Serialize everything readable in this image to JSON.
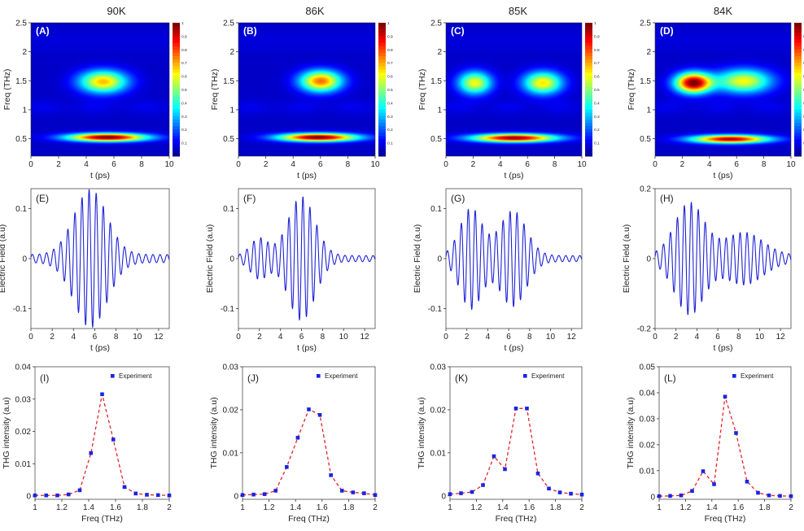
{
  "figure": {
    "temperatures": [
      "90K",
      "86K",
      "85K",
      "84K"
    ]
  },
  "chart_data": [
    {
      "type": "heatmap",
      "panel": "(A)",
      "title": "90K",
      "xlabel": "t (ps)",
      "ylabel": "Freq (THz)",
      "xlim": [
        0,
        10
      ],
      "ylim": [
        0.2,
        2.5
      ],
      "xticks": [
        0,
        2,
        4,
        6,
        8,
        10
      ],
      "yticks": [
        0.5,
        1,
        1.5,
        2,
        2.5
      ],
      "colorbar": {
        "range": [
          0,
          1
        ],
        "ticks": [
          "0.1",
          "0.2",
          "0.3",
          "0.4",
          "0.5",
          "0.6",
          "0.7",
          "0.8",
          "0.9",
          "1"
        ]
      },
      "blobs": [
        {
          "t": 5.5,
          "f": 0.53,
          "st": 2.8,
          "sf": 0.07,
          "amp": 0.95
        },
        {
          "t": 5.2,
          "f": 1.49,
          "st": 1.7,
          "sf": 0.19,
          "amp": 0.62
        }
      ]
    },
    {
      "type": "heatmap",
      "panel": "(B)",
      "title": "86K",
      "xlabel": "t (ps)",
      "ylabel": "Freq (THz)",
      "xlim": [
        0,
        10
      ],
      "ylim": [
        0.2,
        2.5
      ],
      "xticks": [
        0,
        2,
        4,
        6,
        8,
        10
      ],
      "yticks": [
        0.5,
        1,
        1.5,
        2,
        2.5
      ],
      "colorbar": {
        "range": [
          0,
          1
        ],
        "ticks": [
          "0.1",
          "0.2",
          "0.3",
          "0.4",
          "0.5",
          "0.6",
          "0.7",
          "0.8",
          "0.9",
          "1"
        ]
      },
      "blobs": [
        {
          "t": 5.8,
          "f": 0.53,
          "st": 2.8,
          "sf": 0.07,
          "amp": 0.95
        },
        {
          "t": 6.0,
          "f": 1.5,
          "st": 1.5,
          "sf": 0.18,
          "amp": 0.7
        }
      ]
    },
    {
      "type": "heatmap",
      "panel": "(C)",
      "title": "85K",
      "xlabel": "t (ps)",
      "ylabel": "Freq (THz)",
      "xlim": [
        0,
        10
      ],
      "ylim": [
        0.2,
        2.5
      ],
      "xticks": [
        0,
        2,
        4,
        6,
        8,
        10
      ],
      "yticks": [
        0.5,
        1,
        1.5,
        2,
        2.5
      ],
      "colorbar": {
        "range": [
          0,
          1
        ],
        "ticks": [
          "0.1",
          "0.2",
          "0.3",
          "0.4",
          "0.5",
          "0.6",
          "0.7",
          "0.8",
          "0.9",
          "1"
        ]
      },
      "blobs": [
        {
          "t": 5.0,
          "f": 0.52,
          "st": 3.0,
          "sf": 0.07,
          "amp": 0.92
        },
        {
          "t": 2.1,
          "f": 1.47,
          "st": 1.2,
          "sf": 0.19,
          "amp": 0.55
        },
        {
          "t": 7.1,
          "f": 1.47,
          "st": 1.4,
          "sf": 0.19,
          "amp": 0.58
        }
      ]
    },
    {
      "type": "heatmap",
      "panel": "(D)",
      "title": "84K",
      "xlabel": "t (ps)",
      "ylabel": "Freq (THz)",
      "xlim": [
        0,
        10
      ],
      "ylim": [
        0.2,
        2.5
      ],
      "xticks": [
        0,
        2,
        4,
        6,
        8,
        10
      ],
      "yticks": [
        0.5,
        1,
        1.5,
        2,
        2.5
      ],
      "colorbar": {
        "range": [
          0,
          1
        ],
        "ticks": [
          "0.1",
          "0.2",
          "0.3",
          "0.4",
          "0.5",
          "0.6",
          "0.7",
          "0.8",
          "0.9",
          "1"
        ]
      },
      "blobs": [
        {
          "t": 5.5,
          "f": 0.5,
          "st": 2.8,
          "sf": 0.07,
          "amp": 0.88
        },
        {
          "t": 2.8,
          "f": 1.47,
          "st": 1.3,
          "sf": 0.17,
          "amp": 0.95
        },
        {
          "t": 6.5,
          "f": 1.5,
          "st": 2.0,
          "sf": 0.2,
          "amp": 0.55
        }
      ]
    },
    {
      "type": "line",
      "panel": "(E)",
      "xlabel": "t (ps)",
      "ylabel": "Electric Field (a.u)",
      "xlim": [
        0,
        13
      ],
      "ylim": [
        -0.14,
        0.14
      ],
      "xticks": [
        0,
        2,
        4,
        6,
        8,
        10,
        12
      ],
      "yticks": [
        -0.1,
        0,
        0.1
      ],
      "ytick_labels": [
        "-0.1",
        "0",
        "0.1"
      ],
      "waveform": {
        "freq_thz": 1.5,
        "envelope": [
          {
            "center": 5.6,
            "sigma": 2.2,
            "amp": 0.13
          }
        ],
        "baseline_amp": 0.008
      }
    },
    {
      "type": "line",
      "panel": "(F)",
      "xlabel": "t (ps)",
      "ylabel": "Electric Field (a.u)",
      "xlim": [
        0,
        13
      ],
      "ylim": [
        -0.14,
        0.14
      ],
      "xticks": [
        0,
        2,
        4,
        6,
        8,
        10,
        12
      ],
      "yticks": [
        -0.1,
        0,
        0.1
      ],
      "ytick_labels": [
        "-0.1",
        "0",
        "0.1"
      ],
      "waveform": {
        "freq_thz": 1.5,
        "envelope": [
          {
            "center": 6.0,
            "sigma": 1.8,
            "amp": 0.118
          },
          {
            "center": 2.0,
            "sigma": 1.2,
            "amp": 0.035
          }
        ],
        "baseline_amp": 0.006
      }
    },
    {
      "type": "line",
      "panel": "(G)",
      "xlabel": "t (ps)",
      "ylabel": "Electric Field (a.u)",
      "xlim": [
        0,
        13
      ],
      "ylim": [
        -0.14,
        0.14
      ],
      "xticks": [
        0,
        2,
        4,
        6,
        8,
        10,
        12
      ],
      "yticks": [
        -0.1,
        0,
        0.1
      ],
      "ytick_labels": [
        "-0.1",
        "0",
        "0.1"
      ],
      "waveform": {
        "freq_thz": 1.5,
        "envelope": [
          {
            "center": 2.4,
            "sigma": 1.5,
            "amp": 0.095
          },
          {
            "center": 6.4,
            "sigma": 1.8,
            "amp": 0.09
          }
        ],
        "baseline_amp": 0.006
      }
    },
    {
      "type": "line",
      "panel": "(H)",
      "xlabel": "t (ps)",
      "ylabel": "Electric Field (a.u)",
      "xlim": [
        0,
        13
      ],
      "ylim": [
        -0.2,
        0.2
      ],
      "xticks": [
        0,
        2,
        4,
        6,
        8,
        10,
        12
      ],
      "yticks": [
        -0.2,
        0,
        0.2
      ],
      "ytick_labels": [
        "-0.2",
        "0",
        "0.2"
      ],
      "waveform": {
        "freq_thz": 1.5,
        "envelope": [
          {
            "center": 3.3,
            "sigma": 2.0,
            "amp": 0.15
          },
          {
            "center": 8.5,
            "sigma": 2.6,
            "amp": 0.065
          }
        ],
        "baseline_amp": 0.01
      }
    },
    {
      "type": "scatter",
      "panel": "(I)",
      "xlabel": "Freq (THz)",
      "ylabel": "THG intensity (a.u)",
      "xlim": [
        1,
        2
      ],
      "ylim": [
        -0.001,
        0.04
      ],
      "xticks": [
        1,
        1.2,
        1.4,
        1.6,
        1.8,
        2
      ],
      "xtick_labels": [
        "1",
        "1.2",
        "1.4",
        "1.6",
        "1.8",
        "2"
      ],
      "yticks": [
        0,
        0.01,
        0.02,
        0.03,
        0.04
      ],
      "ytick_labels": [
        "0",
        "0.01",
        "0.02",
        "0.03",
        "0.04"
      ],
      "legend": "Experiment",
      "x": [
        1.0,
        1.0833,
        1.1667,
        1.25,
        1.3333,
        1.4167,
        1.5,
        1.5833,
        1.6667,
        1.75,
        1.8333,
        1.9167,
        2.0
      ],
      "y": [
        0.0002,
        0.0002,
        0.0002,
        0.0005,
        0.0018,
        0.0133,
        0.0315,
        0.0175,
        0.0028,
        0.0008,
        0.0004,
        0.0003,
        0.0002
      ]
    },
    {
      "type": "scatter",
      "panel": "(J)",
      "xlabel": "Freq (THz)",
      "ylabel": "THG intensity (a.u)",
      "xlim": [
        1,
        2
      ],
      "ylim": [
        -0.0008,
        0.03
      ],
      "xticks": [
        1,
        1.2,
        1.4,
        1.6,
        1.8,
        2
      ],
      "xtick_labels": [
        "1",
        "1.2",
        "1.4",
        "1.6",
        "1.8",
        "2"
      ],
      "yticks": [
        0,
        0.01,
        0.02,
        0.03
      ],
      "ytick_labels": [
        "0",
        "0.01",
        "0.02",
        "0.03"
      ],
      "legend": "Experiment",
      "x": [
        1.0,
        1.0833,
        1.1667,
        1.25,
        1.3333,
        1.4167,
        1.5,
        1.5833,
        1.6667,
        1.75,
        1.8333,
        1.9167,
        2.0
      ],
      "y": [
        0.0002,
        0.0003,
        0.0004,
        0.0012,
        0.0067,
        0.0135,
        0.0201,
        0.0188,
        0.0048,
        0.0012,
        0.0008,
        0.0006,
        0.0002
      ]
    },
    {
      "type": "scatter",
      "panel": "(K)",
      "xlabel": "Freq (THz)",
      "ylabel": "THG intensity (a.u)",
      "xlim": [
        1,
        2
      ],
      "ylim": [
        -0.0008,
        0.03
      ],
      "xticks": [
        1,
        1.2,
        1.4,
        1.6,
        1.8,
        2
      ],
      "xtick_labels": [
        "1",
        "1.2",
        "1.4",
        "1.6",
        "1.8",
        "2"
      ],
      "yticks": [
        0,
        0.01,
        0.02,
        0.03
      ],
      "ytick_labels": [
        "0",
        "0.01",
        "0.02",
        "0.03"
      ],
      "legend": "Experiment",
      "x": [
        1.0,
        1.0833,
        1.1667,
        1.25,
        1.3333,
        1.4167,
        1.5,
        1.5833,
        1.6667,
        1.75,
        1.8333,
        1.9167,
        2.0
      ],
      "y": [
        0.0004,
        0.0006,
        0.0009,
        0.0025,
        0.0092,
        0.0062,
        0.0203,
        0.0203,
        0.0052,
        0.0017,
        0.0008,
        0.0005,
        0.0003
      ]
    },
    {
      "type": "scatter",
      "panel": "(L)",
      "xlabel": "Freq (THz)",
      "ylabel": "THG intensity (a.u)",
      "xlim": [
        1,
        2
      ],
      "ylim": [
        -0.001,
        0.05
      ],
      "xticks": [
        1,
        1.2,
        1.4,
        1.6,
        1.8,
        2
      ],
      "xtick_labels": [
        "1",
        "1.2",
        "1.4",
        "1.6",
        "1.8",
        "2"
      ],
      "yticks": [
        0,
        0.01,
        0.02,
        0.03,
        0.04,
        0.05
      ],
      "ytick_labels": [
        "0",
        "0.01",
        "0.02",
        "0.03",
        "0.04",
        "0.05"
      ],
      "legend": "Experiment",
      "x": [
        1.0,
        1.0833,
        1.1667,
        1.25,
        1.3333,
        1.4167,
        1.5,
        1.5833,
        1.6667,
        1.75,
        1.8333,
        1.9167,
        2.0
      ],
      "y": [
        0.0002,
        0.0003,
        0.0005,
        0.0022,
        0.0098,
        0.0048,
        0.0385,
        0.0245,
        0.0058,
        0.0015,
        0.0005,
        0.0003,
        0.0002
      ]
    }
  ],
  "colors": {
    "line": "#1f23d6",
    "marker": "#1a24e0",
    "fit": "#e3242b"
  }
}
